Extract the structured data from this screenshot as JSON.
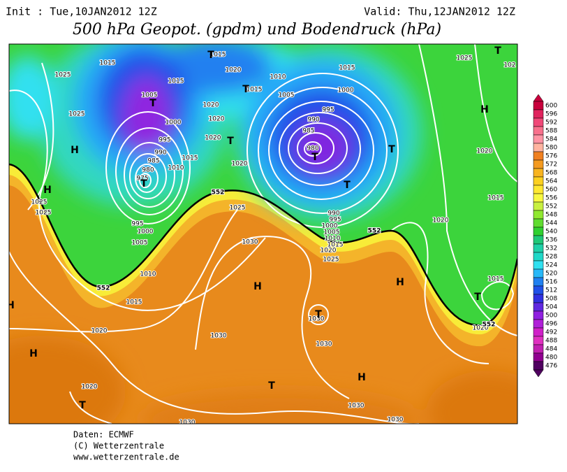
{
  "header": {
    "init": "Init : Tue,10JAN2012 12Z",
    "valid": "Valid: Thu,12JAN2012 12Z"
  },
  "title": "500 hPa Geopot. (gpdm) und Bodendruck (hPa)",
  "legend": {
    "values": [
      600,
      596,
      592,
      588,
      584,
      580,
      576,
      572,
      568,
      564,
      560,
      556,
      552,
      548,
      544,
      540,
      536,
      532,
      528,
      524,
      520,
      516,
      512,
      508,
      504,
      500,
      496,
      492,
      488,
      484,
      480,
      476
    ],
    "colors": [
      "#c8003c",
      "#e0245e",
      "#f04878",
      "#f8708c",
      "#ff94a4",
      "#ffb4a0",
      "#f08020",
      "#f49a20",
      "#f8b420",
      "#fcd020",
      "#ffe830",
      "#f8f840",
      "#c8f040",
      "#90e830",
      "#60dc30",
      "#30d030",
      "#20c878",
      "#20d0a8",
      "#20d8c8",
      "#30e0f0",
      "#28b8f8",
      "#2080f0",
      "#2050e8",
      "#3030e0",
      "#6028e0",
      "#9020e0",
      "#b020d8",
      "#d020c8",
      "#e030c0",
      "#c020b0",
      "#900090",
      "#500060"
    ]
  },
  "isobar_labels": [
    "1015",
    "1025",
    "1025",
    "1005",
    "1000",
    "995",
    "990",
    "985",
    "980",
    "975",
    "1010",
    "1015",
    "1020",
    "1020",
    "1020",
    "1020",
    "1015",
    "1015",
    "1020",
    "1015",
    "1010",
    "1005",
    "1000",
    "995",
    "990",
    "985",
    "980",
    "1015",
    "1025",
    "1020",
    "1015",
    "1020",
    "1015",
    "1020",
    "1025",
    "1025",
    "995",
    "1000",
    "1005",
    "1010",
    "1015",
    "1020",
    "1025",
    "1030",
    "990",
    "995",
    "1000",
    "1005",
    "1010",
    "1015",
    "1020",
    "1025",
    "1030",
    "1030",
    "1030",
    "1020",
    "1030",
    "1030",
    "1030",
    "102"
  ],
  "contour_labels": [
    "552",
    "552",
    "552",
    "552"
  ],
  "centers": [
    "H",
    "H",
    "H",
    "H",
    "T",
    "T",
    "T",
    "T",
    "T",
    "T",
    "T",
    "T",
    "T",
    "H",
    "T",
    "H",
    "H",
    "T",
    "T",
    "T",
    "H"
  ],
  "footer": {
    "source": "Daten: ECMWF",
    "copyright": "(C) Wetterzentrale",
    "url": "www.wetterzentrale.de"
  }
}
